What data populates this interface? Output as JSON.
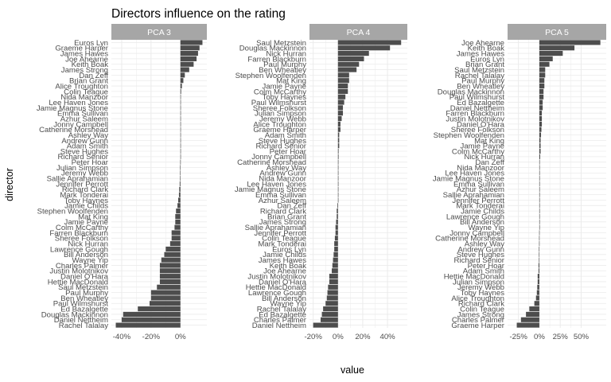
{
  "chart_data": {
    "type": "bar",
    "orientation": "horizontal",
    "title": "Directors influence on the rating",
    "xlabel": "value",
    "ylabel": "director",
    "grid": true,
    "legend": "none",
    "colors": {
      "bar": "#4d4d4d",
      "strip": "#a6a6a6",
      "grid": "#ebebeb",
      "strip_text": "#ffffff"
    },
    "panels": [
      {
        "name": "PCA 3",
        "xlim": [
          -0.47,
          0.18
        ],
        "ticks": [
          -0.4,
          -0.2,
          0.0
        ],
        "tick_labels": [
          "-40%",
          "-20%",
          "0%"
        ],
        "categories": [
          "Euros Lyn",
          "Graeme Harper",
          "James Hawes",
          "Joe Ahearne",
          "Keith Boak",
          "James Strong",
          "Dan Zeff",
          "Brian Grant",
          "Alice Troughton",
          "Colin Teague",
          "Nida Manzoor",
          "Lee Haven Jones",
          "Jamie Magnus Stone",
          "Emma Sullivan",
          "Azhur Saleem",
          "Jonny Campbell",
          "Catherine Morshead",
          "Ashley Way",
          "Andrew Gunn",
          "Adam Smith",
          "Steve Hughes",
          "Richard Senior",
          "Peter Hoar",
          "Julian Simpson",
          "Jeremy Webb",
          "Sallie Aprahamian",
          "Jennifer Perrott",
          "Richard Clark",
          "Mark Tonderai",
          "Toby Haynes",
          "Jamie Childs",
          "Stephen Woolfenden",
          "Mat King",
          "Jamie Payne",
          "Colm McCarthy",
          "Farren Blackburn",
          "Sheree Folkson",
          "Nick Hurran",
          "Lawrence Gough",
          "Bill Anderson",
          "Wayne Yip",
          "Charles Palmer",
          "Justin Molotnikov",
          "Daniel O'Hara",
          "Hettie MacDonald",
          "Saul Metzstein",
          "Paul Murphy",
          "Ben Wheatley",
          "Paul Wilmshurst",
          "Ed Bazalgette",
          "Douglas Mackinnon",
          "Daniel Nettheim",
          "Rachel Talalay"
        ],
        "values": [
          0.15,
          0.13,
          0.12,
          0.11,
          0.09,
          0.06,
          0.03,
          0.02,
          0.01,
          0.005,
          0.002,
          0.002,
          0.001,
          0.001,
          0.0,
          0.0,
          0.0,
          0.0,
          0.0,
          0.0,
          0.0,
          0.0,
          -0.001,
          -0.002,
          -0.002,
          -0.003,
          -0.005,
          -0.008,
          -0.01,
          -0.015,
          -0.02,
          -0.03,
          -0.035,
          -0.035,
          -0.04,
          -0.06,
          -0.06,
          -0.07,
          -0.1,
          -0.11,
          -0.13,
          -0.14,
          -0.14,
          -0.14,
          -0.14,
          -0.16,
          -0.2,
          -0.2,
          -0.21,
          -0.29,
          -0.39,
          -0.4,
          -0.44
        ]
      },
      {
        "name": "PCA 4",
        "xlim": [
          -0.23,
          0.56
        ],
        "ticks": [
          -0.2,
          0.0,
          0.2,
          0.4
        ],
        "tick_labels": [
          "-20%",
          "0%",
          "20%",
          "40%"
        ],
        "categories": [
          "Saul Metzstein",
          "Douglas Mackinnon",
          "Nick Hurran",
          "Farren Blackburn",
          "Paul Murphy",
          "Ben Wheatley",
          "Stephen Woolfenden",
          "Mat King",
          "Jamie Payne",
          "Colm McCarthy",
          "Toby Haynes",
          "Paul Wilmshurst",
          "Sheree Folkson",
          "Julian Simpson",
          "Jeremy Webb",
          "Alice Troughton",
          "Graeme Harper",
          "Adam Smith",
          "Steve Hughes",
          "Richard Senior",
          "Peter Hoar",
          "Jonny Campbell",
          "Catherine Morshead",
          "Ashley Way",
          "Andrew Gunn",
          "Nida Manzoor",
          "Lee Haven Jones",
          "Jamie Magnus Stone",
          "Emma Sullivan",
          "Azhur Saleem",
          "Dan Zeff",
          "Richard Clark",
          "Brian Grant",
          "James Strong",
          "Sallie Aprahamian",
          "Jennifer Perrott",
          "Colin Teague",
          "Mark Tonderai",
          "Euros Lyn",
          "Jamie Childs",
          "James Hawes",
          "Keith Boak",
          "Joe Ahearne",
          "Justin Molotnikov",
          "Daniel O'Hara",
          "Hettie MacDonald",
          "Lawrence Gough",
          "Bill Anderson",
          "Wayne Yip",
          "Rachel Talalay",
          "Ed Bazalgette",
          "Charles Palmer",
          "Daniel Nettheim"
        ],
        "values": [
          0.51,
          0.42,
          0.25,
          0.21,
          0.17,
          0.15,
          0.09,
          0.09,
          0.08,
          0.08,
          0.06,
          0.05,
          0.04,
          0.04,
          0.03,
          0.02,
          0.02,
          0.01,
          0.01,
          0.01,
          0.005,
          0.005,
          0.004,
          0.003,
          0.002,
          0.001,
          0.001,
          0.0,
          0.0,
          0.0,
          -0.005,
          -0.01,
          -0.01,
          -0.015,
          -0.02,
          -0.02,
          -0.025,
          -0.03,
          -0.03,
          -0.035,
          -0.04,
          -0.045,
          -0.05,
          -0.07,
          -0.07,
          -0.08,
          -0.085,
          -0.09,
          -0.1,
          -0.12,
          -0.13,
          -0.14,
          -0.2
        ]
      },
      {
        "name": "PCA 5",
        "xlim": [
          -0.38,
          0.8
        ],
        "ticks": [
          -0.25,
          0.0,
          0.25,
          0.5
        ],
        "tick_labels": [
          "-25%",
          "0%",
          "25%",
          "50%"
        ],
        "categories": [
          "Joe Ahearne",
          "Keith Boak",
          "James Hawes",
          "Euros Lyn",
          "Brian Grant",
          "Saul Metzstein",
          "Rachel Talalay",
          "Paul Murphy",
          "Ben Wheatley",
          "Douglas Mackinnon",
          "Paul Wilmshurst",
          "Ed Bazalgette",
          "Daniel Nettheim",
          "Farren Blackburn",
          "Justin Molotnikov",
          "Daniel O'Hara",
          "Sheree Folkson",
          "Stephen Woolfenden",
          "Mat King",
          "Jamie Payne",
          "Colm McCarthy",
          "Nick Hurran",
          "Dan Zeff",
          "Nida Manzoor",
          "Lee Haven Jones",
          "Jamie Magnus Stone",
          "Emma Sullivan",
          "Azhur Saleem",
          "Sallie Aprahamian",
          "Jennifer Perrott",
          "Mark Tonderai",
          "Jamie Childs",
          "Lawrence Gough",
          "Bill Anderson",
          "Wayne Yip",
          "Jonny Campbell",
          "Catherine Morshead",
          "Ashley Way",
          "Andrew Gunn",
          "Steve Hughes",
          "Richard Senior",
          "Peter Hoar",
          "Adam Smith",
          "Hettie MacDonald",
          "Julian Simpson",
          "Jeremy Webb",
          "Toby Haynes",
          "Alice Troughton",
          "Richard Clark",
          "Colin Teague",
          "James Strong",
          "Charles Palmer",
          "Graeme Harper"
        ],
        "values": [
          0.73,
          0.42,
          0.28,
          0.16,
          0.12,
          0.07,
          0.07,
          0.06,
          0.06,
          0.05,
          0.05,
          0.04,
          0.04,
          0.03,
          0.03,
          0.03,
          0.025,
          0.02,
          0.015,
          0.015,
          0.015,
          0.01,
          0.005,
          0.003,
          0.003,
          0.002,
          0.002,
          0.0,
          0.0,
          0.0,
          0.0,
          0.0,
          0.0,
          0.0,
          0.0,
          -0.002,
          -0.003,
          -0.003,
          -0.005,
          -0.005,
          -0.005,
          -0.01,
          -0.01,
          -0.02,
          -0.02,
          -0.025,
          -0.03,
          -0.04,
          -0.06,
          -0.12,
          -0.16,
          -0.22,
          -0.27
        ]
      }
    ]
  }
}
